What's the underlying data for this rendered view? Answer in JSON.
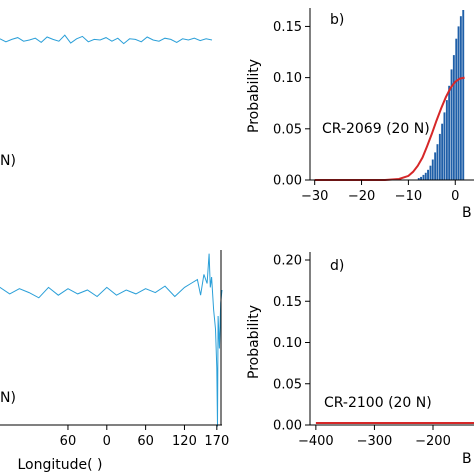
{
  "chart_data": [
    {
      "panel": "top-left",
      "type": "line",
      "series": [
        {
          "color": "#2a9fd8",
          "x": [
            -180,
            -170,
            -160,
            -150,
            -140,
            -130,
            -120,
            -110,
            -100,
            -90,
            -80,
            -70,
            -60,
            -50,
            -40,
            -30,
            -20,
            -10,
            0,
            10,
            20,
            30,
            40,
            50,
            60,
            70,
            80,
            90,
            100,
            110,
            120,
            130,
            140,
            150,
            160,
            170,
            180
          ],
          "y": [
            0.02,
            -0.03,
            0.01,
            0.04,
            -0.02,
            0.0,
            0.03,
            -0.04,
            0.05,
            0.01,
            -0.02,
            0.08,
            -0.05,
            0.02,
            0.06,
            -0.03,
            0.01,
            0.0,
            0.04,
            -0.02,
            0.03,
            -0.06,
            0.02,
            0.01,
            -0.03,
            0.05,
            0.0,
            -0.02,
            0.03,
            0.01,
            -0.04,
            0.02,
            0.0,
            0.03,
            -0.01,
            0.02,
            0.0
          ]
        }
      ],
      "annotation": "N)"
    },
    {
      "panel": "top-right",
      "type": "bar",
      "label": "b)",
      "annotation": "CR-2069 (20 N)",
      "xlabel": "B",
      "ylabel": "Probability",
      "xlim": [
        -31,
        4
      ],
      "ylim": [
        0,
        0.168
      ],
      "xticks": [
        "−30",
        "−20",
        "−10",
        "0"
      ],
      "yticks": [
        "0.00",
        "0.05",
        "0.10",
        "0.15"
      ],
      "bar_color": "#1f5fa8",
      "bar_x": [
        -8.0,
        -7.5,
        -7.0,
        -6.5,
        -6.0,
        -5.5,
        -5.0,
        -4.5,
        -4.0,
        -3.5,
        -3.0,
        -2.5,
        -2.0,
        -1.5,
        -1.0,
        -0.5,
        0.0,
        0.5,
        1.0,
        1.5
      ],
      "bar_values": [
        0.002,
        0.003,
        0.005,
        0.007,
        0.01,
        0.014,
        0.02,
        0.027,
        0.035,
        0.045,
        0.055,
        0.066,
        0.078,
        0.092,
        0.108,
        0.122,
        0.138,
        0.15,
        0.16,
        0.166
      ],
      "fit_color": "#d62728",
      "fit_x": [
        -30,
        -25,
        -20,
        -15,
        -12,
        -10,
        -9,
        -8,
        -7,
        -6,
        -5,
        -4,
        -3,
        -2,
        -1,
        0,
        1,
        2
      ],
      "fit_y": [
        0,
        0,
        0,
        0,
        0.001,
        0.004,
        0.008,
        0.014,
        0.022,
        0.033,
        0.045,
        0.058,
        0.07,
        0.081,
        0.09,
        0.096,
        0.099,
        0.1
      ]
    },
    {
      "panel": "bottom-left",
      "type": "line",
      "xlabel": "Longitude( )",
      "xlim": [
        -165,
        178
      ],
      "xticks": [
        "60",
        "0",
        "60",
        "120",
        "170"
      ],
      "xtick_values": [
        -60,
        0,
        60,
        120,
        170
      ],
      "series": [
        {
          "color": "#2a9fd8",
          "x": [
            -180,
            -165,
            -150,
            -135,
            -120,
            -105,
            -90,
            -75,
            -60,
            -45,
            -30,
            -15,
            0,
            15,
            30,
            45,
            60,
            75,
            90,
            105,
            120,
            130,
            140,
            145,
            150,
            155,
            158,
            160,
            162,
            165,
            168,
            170,
            171,
            172,
            174,
            176,
            178
          ],
          "y": [
            0.0,
            0.02,
            -0.03,
            0.01,
            -0.02,
            -0.06,
            0.02,
            -0.04,
            0.01,
            -0.03,
            0.0,
            -0.05,
            0.02,
            -0.04,
            0.0,
            -0.03,
            0.01,
            -0.02,
            0.03,
            -0.05,
            0.02,
            0.05,
            0.08,
            -0.04,
            0.12,
            0.05,
            0.28,
            0.02,
            0.1,
            -0.15,
            -0.3,
            -0.6,
            -1.05,
            -0.2,
            -0.45,
            -0.1,
            0.0
          ]
        }
      ],
      "annotation": "N)"
    },
    {
      "panel": "bottom-right",
      "type": "line",
      "label": "d)",
      "annotation": "CR-2100 (20 N)",
      "xlabel": "B",
      "ylabel": "Probability",
      "xlim": [
        -410,
        -130
      ],
      "ylim": [
        0,
        0.2
      ],
      "xticks": [
        "−400",
        "−300",
        "−200"
      ],
      "yticks": [
        "0.00",
        "0.05",
        "0.10",
        "0.15",
        "0.20"
      ],
      "fit_color": "#d62728",
      "fit_x": [
        -400,
        -130
      ],
      "fit_y": [
        0,
        0
      ]
    }
  ]
}
